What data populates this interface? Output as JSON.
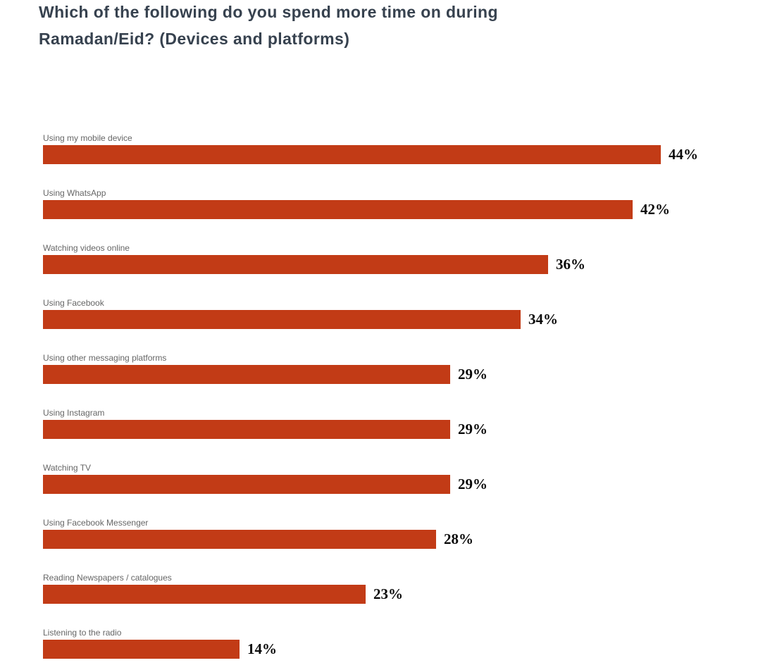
{
  "page": {
    "background": "#ffffff"
  },
  "header": {
    "title": "Which of the following do you spend more time on during Ramadan/Eid? (Devices and platforms)",
    "title_color": "#37424f"
  },
  "chart_data": {
    "type": "bar",
    "orientation": "horizontal",
    "title": "Which of the following do you spend more time on during Ramadan/Eid? (Devices and platforms)",
    "categories": [
      "Using my mobile device",
      "Using WhatsApp",
      "Watching videos online",
      "Using Facebook",
      "Using other messaging platforms",
      "Using Instagram",
      "Watching TV",
      "Using Facebook Messenger",
      "Reading Newspapers / catalogues",
      "Listening to the radio"
    ],
    "values": [
      44,
      42,
      36,
      34,
      29,
      29,
      29,
      28,
      23,
      14
    ],
    "value_suffix": "%",
    "value_labels": [
      "44%",
      "42%",
      "36%",
      "34%",
      "29%",
      "29%",
      "29%",
      "28%",
      "23%",
      "14%"
    ],
    "xlabel": "",
    "ylabel": "",
    "xlim": [
      0,
      44
    ],
    "grid": false,
    "legend": "none",
    "bar_color": "#c23b16",
    "category_label_color": "#666666",
    "value_label_color": "#0a0a0a"
  }
}
